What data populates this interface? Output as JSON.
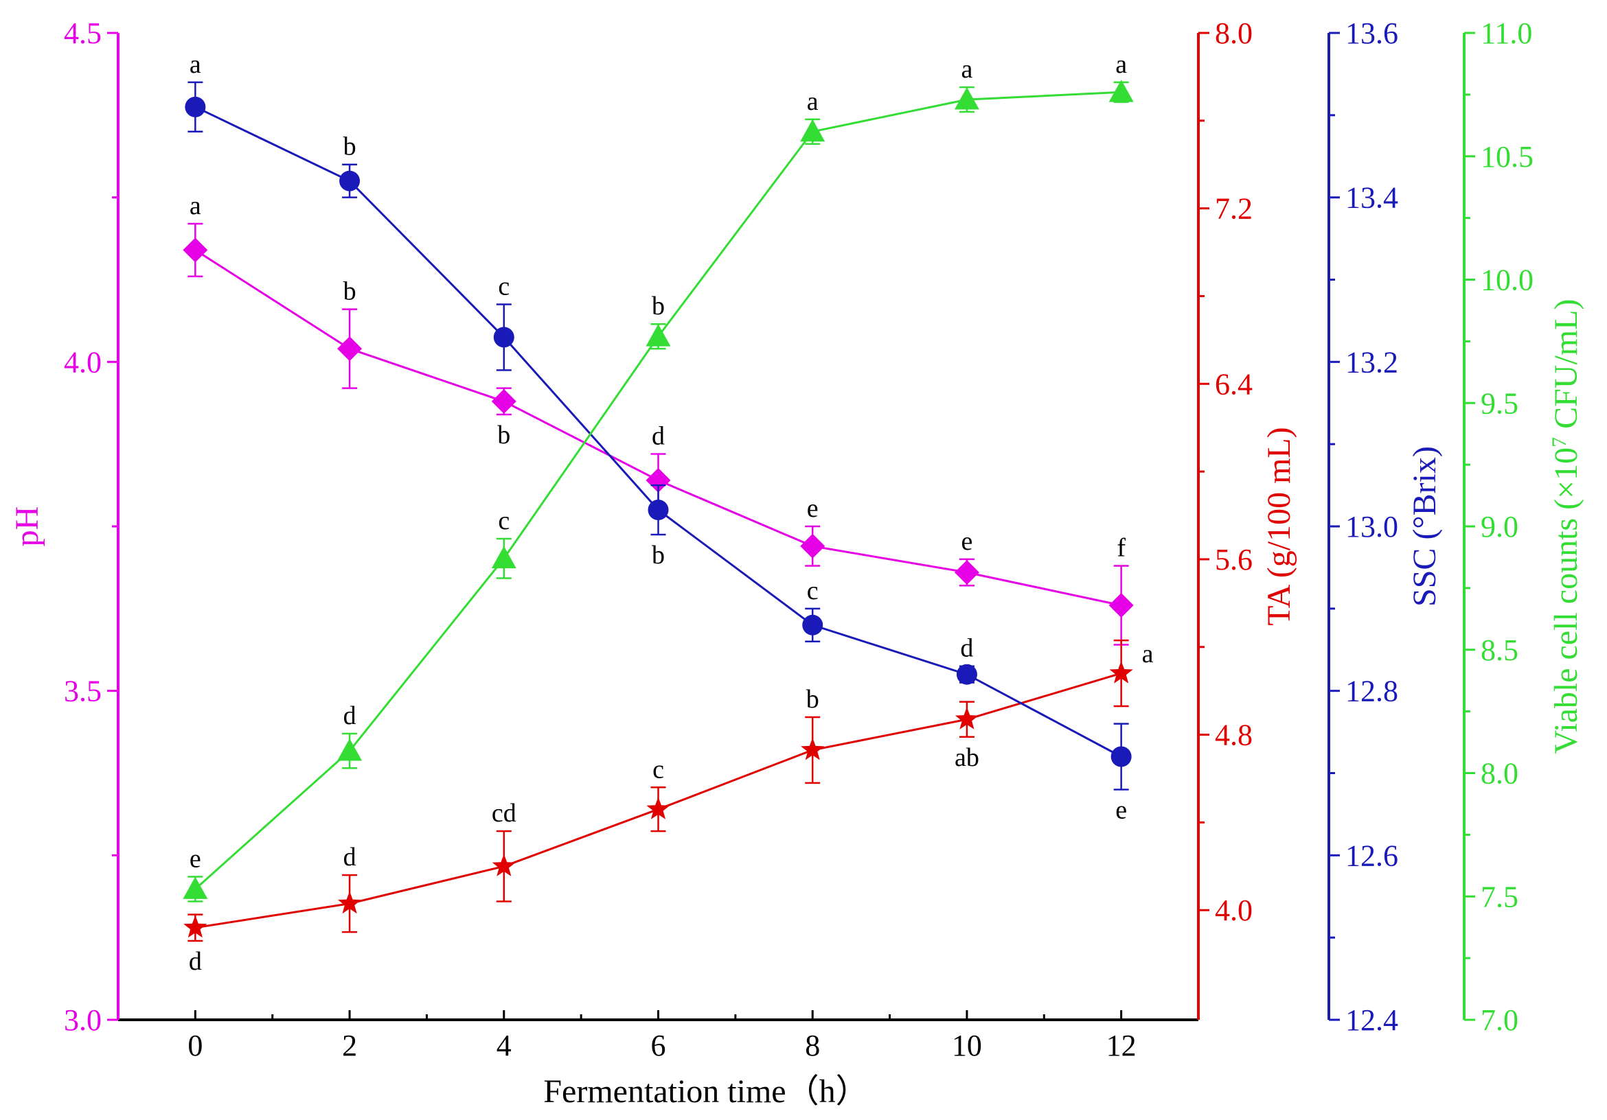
{
  "chart_data": {
    "type": "line",
    "xlabel": "Fermentation time（h）",
    "x": [
      0,
      2,
      4,
      6,
      8,
      10,
      12
    ],
    "xlim": [
      -1,
      13
    ],
    "xticks": [
      0,
      2,
      4,
      6,
      8,
      10,
      12
    ],
    "axes": [
      {
        "id": "ph",
        "label": "pH",
        "side": "left",
        "color": "#e600e6",
        "ylim": [
          3.0,
          4.5
        ],
        "ticks": [
          3.0,
          3.5,
          4.0,
          4.5
        ],
        "tick_labels": [
          "3.0",
          "3.5",
          "4.0",
          "4.5"
        ]
      },
      {
        "id": "ta",
        "label": "TA (g/100 mL)",
        "side": "right",
        "color": "#e00000",
        "ylim": [
          3.5,
          8.0
        ],
        "ticks": [
          4.0,
          4.8,
          5.6,
          6.4,
          7.2,
          8.0
        ],
        "tick_labels": [
          "4.0",
          "4.8",
          "5.6",
          "6.4",
          "7.2",
          "8.0"
        ]
      },
      {
        "id": "ssc",
        "label": "SSC (°Brix)",
        "side": "right",
        "color": "#1a1ab8",
        "ylim": [
          12.4,
          13.6
        ],
        "ticks": [
          12.4,
          12.6,
          12.8,
          13.0,
          13.2,
          13.4,
          13.6
        ],
        "tick_labels": [
          "12.4",
          "12.6",
          "12.8",
          "13.0",
          "13.2",
          "13.4",
          "13.6"
        ]
      },
      {
        "id": "vcc",
        "label": "Viable cell counts (×10",
        "label_sup": "7",
        "label_rest": " CFU/mL)",
        "side": "right",
        "color": "#33dd33",
        "ylim": [
          7.0,
          11.0
        ],
        "ticks": [
          7.0,
          7.5,
          8.0,
          8.5,
          9.0,
          9.5,
          10.0,
          10.5,
          11.0
        ],
        "tick_labels": [
          "7.0",
          "7.5",
          "8.0",
          "8.5",
          "9.0",
          "9.5",
          "10.0",
          "10.5",
          "11.0"
        ]
      }
    ],
    "series": [
      {
        "name": "pH",
        "axis": "ph",
        "marker": "diamond",
        "color": "#e600e6",
        "values": [
          4.17,
          4.02,
          3.94,
          3.82,
          3.72,
          3.68,
          3.63
        ],
        "errors": [
          0.04,
          0.06,
          0.02,
          0.04,
          0.03,
          0.02,
          0.06
        ],
        "letters": [
          "a",
          "b",
          "b",
          "d",
          "e",
          "e",
          "f"
        ],
        "letter_pos": [
          "above",
          "above",
          "below",
          "above",
          "above",
          "above",
          "above"
        ]
      },
      {
        "name": "TA",
        "axis": "ta",
        "marker": "star",
        "color": "#e00000",
        "values": [
          3.92,
          4.03,
          4.2,
          4.46,
          4.73,
          4.87,
          5.08
        ],
        "errors": [
          0.06,
          0.13,
          0.16,
          0.1,
          0.15,
          0.08,
          0.15
        ],
        "letters": [
          "d",
          "d",
          "cd",
          "c",
          "b",
          "ab",
          "a"
        ],
        "letter_pos": [
          "below",
          "above",
          "above",
          "above",
          "above",
          "below",
          "right"
        ]
      },
      {
        "name": "SSC",
        "axis": "ssc",
        "marker": "circle",
        "color": "#1a1ab8",
        "values": [
          13.51,
          13.42,
          13.23,
          13.02,
          12.88,
          12.82,
          12.72
        ],
        "errors": [
          0.03,
          0.02,
          0.04,
          0.03,
          0.02,
          0.01,
          0.04
        ],
        "letters": [
          "a",
          "b",
          "c",
          "b",
          "c",
          "d",
          "e"
        ],
        "letter_pos": [
          "above",
          "above",
          "above",
          "below",
          "above",
          "above",
          "below"
        ]
      },
      {
        "name": "Viable cell counts",
        "axis": "vcc",
        "marker": "triangle",
        "color": "#33dd33",
        "values": [
          7.53,
          8.09,
          8.87,
          9.77,
          10.6,
          10.73,
          10.76
        ],
        "errors": [
          0.05,
          0.07,
          0.08,
          0.05,
          0.05,
          0.05,
          0.04
        ],
        "letters": [
          "e",
          "d",
          "c",
          "b",
          "a",
          "a",
          "a"
        ],
        "letter_pos": [
          "above",
          "above",
          "above",
          "above",
          "above",
          "above",
          "above"
        ]
      }
    ]
  }
}
